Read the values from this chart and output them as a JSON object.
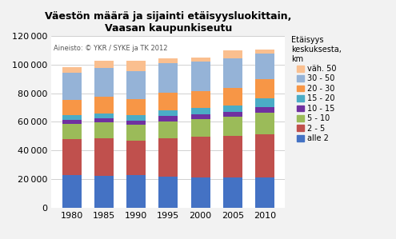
{
  "title": "Väestön määrä ja sijainti etäisyysluokittain,\nVaasan kaupunkiseutu",
  "subtitle_note": "Aineisto: © YKR / SYKE ja TK 2012",
  "legend_title": "Etäisyys\nkeskuksesta,\nkm",
  "categories": [
    1980,
    1985,
    1990,
    1995,
    2000,
    2005,
    2010
  ],
  "series": [
    {
      "label": "alle 2",
      "color": "#4472C4",
      "values": [
        23000,
        22500,
        23000,
        22000,
        21000,
        21000,
        21500
      ]
    },
    {
      "label": "2 - 5",
      "color": "#C0504D",
      "values": [
        25000,
        26000,
        24000,
        26500,
        28500,
        29000,
        30000
      ]
    },
    {
      "label": "5 - 10",
      "color": "#9BBB59",
      "values": [
        10500,
        11000,
        11000,
        12000,
        12500,
        13500,
        15000
      ]
    },
    {
      "label": "10 - 15",
      "color": "#7030A0",
      "values": [
        3000,
        3000,
        3000,
        3500,
        3500,
        3500,
        4000
      ]
    },
    {
      "label": "15 - 20",
      "color": "#4BACC6",
      "values": [
        3500,
        3500,
        3500,
        4000,
        4500,
        4500,
        6000
      ]
    },
    {
      "label": "20 - 30",
      "color": "#F79646",
      "values": [
        10500,
        11500,
        11500,
        12500,
        11500,
        12000,
        13500
      ]
    },
    {
      "label": "30 - 50",
      "color": "#95B3D7",
      "values": [
        19000,
        20000,
        19500,
        20500,
        20500,
        21000,
        17500
      ]
    },
    {
      "label": "väh. 50",
      "color": "#FABF8F",
      "values": [
        3500,
        5000,
        7000,
        3500,
        3000,
        5500,
        3000
      ]
    }
  ],
  "ylim": [
    0,
    120000
  ],
  "yticks": [
    0,
    20000,
    40000,
    60000,
    80000,
    100000,
    120000
  ],
  "background_color": "#F2F2F2",
  "plot_background": "#FFFFFF",
  "grid_color": "#BEBEBE"
}
